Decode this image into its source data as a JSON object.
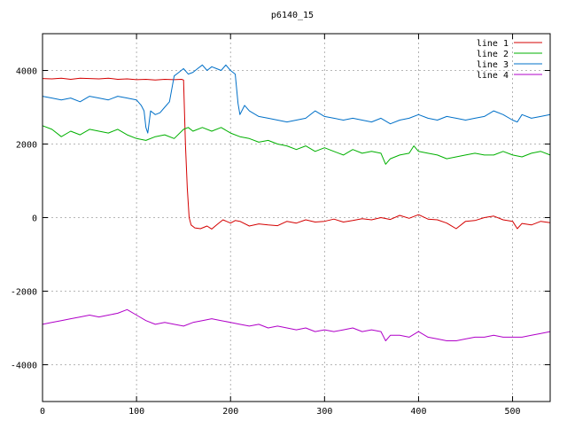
{
  "chart_data": {
    "type": "line",
    "title": "p6140_15",
    "xlabel": "",
    "ylabel": "",
    "xlim": [
      0,
      540
    ],
    "ylim": [
      -5000,
      5000
    ],
    "xticks": [
      0,
      100,
      200,
      300,
      400,
      500
    ],
    "yticks": [
      -4000,
      -2000,
      0,
      2000,
      4000
    ],
    "grid": true,
    "legend_position": "top-right",
    "series": [
      {
        "name": "line 1",
        "color": "#d40000",
        "points": [
          [
            0,
            3780
          ],
          [
            10,
            3770
          ],
          [
            20,
            3790
          ],
          [
            30,
            3760
          ],
          [
            40,
            3790
          ],
          [
            50,
            3780
          ],
          [
            60,
            3770
          ],
          [
            70,
            3790
          ],
          [
            80,
            3760
          ],
          [
            90,
            3770
          ],
          [
            100,
            3750
          ],
          [
            110,
            3760
          ],
          [
            120,
            3740
          ],
          [
            130,
            3760
          ],
          [
            140,
            3750
          ],
          [
            148,
            3760
          ],
          [
            150,
            3740
          ],
          [
            152,
            2000
          ],
          [
            154,
            800
          ],
          [
            156,
            0
          ],
          [
            158,
            -200
          ],
          [
            162,
            -280
          ],
          [
            168,
            -300
          ],
          [
            175,
            -230
          ],
          [
            180,
            -310
          ],
          [
            186,
            -180
          ],
          [
            192,
            -60
          ],
          [
            200,
            -150
          ],
          [
            205,
            -80
          ],
          [
            210,
            -100
          ],
          [
            220,
            -230
          ],
          [
            230,
            -170
          ],
          [
            240,
            -200
          ],
          [
            250,
            -220
          ],
          [
            260,
            -100
          ],
          [
            270,
            -150
          ],
          [
            280,
            -60
          ],
          [
            290,
            -120
          ],
          [
            300,
            -100
          ],
          [
            310,
            -40
          ],
          [
            320,
            -120
          ],
          [
            330,
            -80
          ],
          [
            340,
            -30
          ],
          [
            350,
            -60
          ],
          [
            360,
            0
          ],
          [
            370,
            -50
          ],
          [
            380,
            60
          ],
          [
            390,
            -20
          ],
          [
            400,
            80
          ],
          [
            410,
            -40
          ],
          [
            420,
            -60
          ],
          [
            430,
            -150
          ],
          [
            440,
            -300
          ],
          [
            450,
            -100
          ],
          [
            460,
            -80
          ],
          [
            470,
            0
          ],
          [
            480,
            40
          ],
          [
            490,
            -60
          ],
          [
            500,
            -100
          ],
          [
            505,
            -300
          ],
          [
            510,
            -160
          ],
          [
            520,
            -200
          ],
          [
            530,
            -100
          ],
          [
            540,
            -140
          ]
        ]
      },
      {
        "name": "line 2",
        "color": "#00b000",
        "points": [
          [
            0,
            2500
          ],
          [
            10,
            2400
          ],
          [
            20,
            2200
          ],
          [
            30,
            2350
          ],
          [
            40,
            2250
          ],
          [
            50,
            2400
          ],
          [
            60,
            2350
          ],
          [
            70,
            2300
          ],
          [
            80,
            2400
          ],
          [
            90,
            2250
          ],
          [
            100,
            2150
          ],
          [
            110,
            2100
          ],
          [
            120,
            2200
          ],
          [
            130,
            2250
          ],
          [
            140,
            2150
          ],
          [
            150,
            2400
          ],
          [
            155,
            2450
          ],
          [
            160,
            2350
          ],
          [
            170,
            2450
          ],
          [
            180,
            2350
          ],
          [
            190,
            2450
          ],
          [
            200,
            2300
          ],
          [
            210,
            2200
          ],
          [
            220,
            2150
          ],
          [
            230,
            2050
          ],
          [
            240,
            2100
          ],
          [
            250,
            2000
          ],
          [
            260,
            1950
          ],
          [
            270,
            1850
          ],
          [
            280,
            1950
          ],
          [
            290,
            1800
          ],
          [
            300,
            1900
          ],
          [
            310,
            1800
          ],
          [
            320,
            1700
          ],
          [
            330,
            1850
          ],
          [
            340,
            1750
          ],
          [
            350,
            1800
          ],
          [
            360,
            1750
          ],
          [
            365,
            1450
          ],
          [
            370,
            1600
          ],
          [
            380,
            1700
          ],
          [
            390,
            1750
          ],
          [
            395,
            1950
          ],
          [
            400,
            1800
          ],
          [
            410,
            1750
          ],
          [
            420,
            1700
          ],
          [
            430,
            1600
          ],
          [
            440,
            1650
          ],
          [
            450,
            1700
          ],
          [
            460,
            1750
          ],
          [
            470,
            1700
          ],
          [
            480,
            1700
          ],
          [
            490,
            1800
          ],
          [
            500,
            1700
          ],
          [
            510,
            1650
          ],
          [
            520,
            1750
          ],
          [
            530,
            1800
          ],
          [
            540,
            1700
          ]
        ]
      },
      {
        "name": "line 3",
        "color": "#0070c8",
        "points": [
          [
            0,
            3300
          ],
          [
            10,
            3250
          ],
          [
            20,
            3200
          ],
          [
            30,
            3250
          ],
          [
            40,
            3150
          ],
          [
            50,
            3300
          ],
          [
            60,
            3250
          ],
          [
            70,
            3200
          ],
          [
            80,
            3300
          ],
          [
            90,
            3250
          ],
          [
            100,
            3200
          ],
          [
            105,
            3050
          ],
          [
            108,
            2900
          ],
          [
            110,
            2450
          ],
          [
            112,
            2300
          ],
          [
            115,
            2900
          ],
          [
            120,
            2800
          ],
          [
            125,
            2850
          ],
          [
            130,
            3000
          ],
          [
            135,
            3150
          ],
          [
            140,
            3850
          ],
          [
            145,
            3950
          ],
          [
            150,
            4050
          ],
          [
            155,
            3900
          ],
          [
            160,
            3950
          ],
          [
            165,
            4050
          ],
          [
            170,
            4150
          ],
          [
            175,
            4000
          ],
          [
            180,
            4100
          ],
          [
            185,
            4050
          ],
          [
            190,
            4000
          ],
          [
            195,
            4150
          ],
          [
            200,
            4000
          ],
          [
            205,
            3900
          ],
          [
            208,
            3100
          ],
          [
            210,
            2800
          ],
          [
            215,
            3050
          ],
          [
            220,
            2900
          ],
          [
            230,
            2750
          ],
          [
            240,
            2700
          ],
          [
            250,
            2650
          ],
          [
            260,
            2600
          ],
          [
            270,
            2650
          ],
          [
            280,
            2700
          ],
          [
            290,
            2900
          ],
          [
            300,
            2750
          ],
          [
            310,
            2700
          ],
          [
            320,
            2650
          ],
          [
            330,
            2700
          ],
          [
            340,
            2650
          ],
          [
            350,
            2600
          ],
          [
            360,
            2700
          ],
          [
            370,
            2550
          ],
          [
            380,
            2650
          ],
          [
            390,
            2700
          ],
          [
            400,
            2800
          ],
          [
            410,
            2700
          ],
          [
            420,
            2650
          ],
          [
            430,
            2750
          ],
          [
            440,
            2700
          ],
          [
            450,
            2650
          ],
          [
            460,
            2700
          ],
          [
            470,
            2750
          ],
          [
            480,
            2900
          ],
          [
            490,
            2800
          ],
          [
            500,
            2650
          ],
          [
            505,
            2600
          ],
          [
            510,
            2800
          ],
          [
            520,
            2700
          ],
          [
            530,
            2750
          ],
          [
            540,
            2800
          ]
        ]
      },
      {
        "name": "line 4",
        "color": "#b000c8",
        "points": [
          [
            0,
            -2900
          ],
          [
            10,
            -2850
          ],
          [
            20,
            -2800
          ],
          [
            30,
            -2750
          ],
          [
            40,
            -2700
          ],
          [
            50,
            -2650
          ],
          [
            60,
            -2700
          ],
          [
            70,
            -2650
          ],
          [
            80,
            -2600
          ],
          [
            90,
            -2500
          ],
          [
            100,
            -2650
          ],
          [
            110,
            -2800
          ],
          [
            120,
            -2900
          ],
          [
            130,
            -2850
          ],
          [
            140,
            -2900
          ],
          [
            150,
            -2950
          ],
          [
            160,
            -2850
          ],
          [
            170,
            -2800
          ],
          [
            180,
            -2750
          ],
          [
            190,
            -2800
          ],
          [
            200,
            -2850
          ],
          [
            210,
            -2900
          ],
          [
            220,
            -2950
          ],
          [
            230,
            -2900
          ],
          [
            240,
            -3000
          ],
          [
            250,
            -2950
          ],
          [
            260,
            -3000
          ],
          [
            270,
            -3050
          ],
          [
            280,
            -3000
          ],
          [
            290,
            -3100
          ],
          [
            300,
            -3050
          ],
          [
            310,
            -3100
          ],
          [
            320,
            -3050
          ],
          [
            330,
            -3000
          ],
          [
            340,
            -3100
          ],
          [
            350,
            -3050
          ],
          [
            360,
            -3100
          ],
          [
            365,
            -3350
          ],
          [
            370,
            -3200
          ],
          [
            380,
            -3200
          ],
          [
            390,
            -3250
          ],
          [
            400,
            -3100
          ],
          [
            410,
            -3250
          ],
          [
            420,
            -3300
          ],
          [
            430,
            -3350
          ],
          [
            440,
            -3350
          ],
          [
            450,
            -3300
          ],
          [
            460,
            -3250
          ],
          [
            470,
            -3250
          ],
          [
            480,
            -3200
          ],
          [
            490,
            -3250
          ],
          [
            500,
            -3250
          ],
          [
            510,
            -3250
          ],
          [
            520,
            -3200
          ],
          [
            530,
            -3150
          ],
          [
            540,
            -3100
          ]
        ]
      }
    ]
  }
}
